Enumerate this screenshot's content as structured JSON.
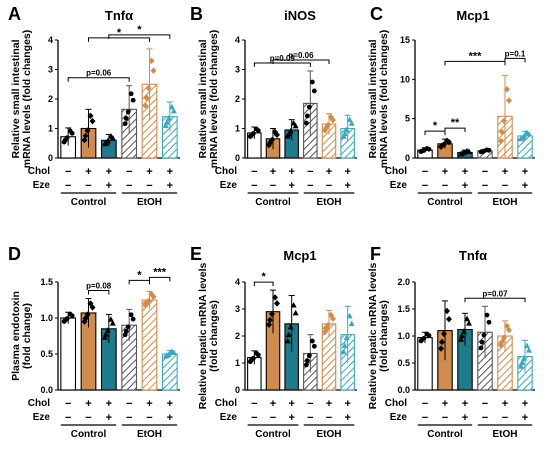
{
  "colors": {
    "control": "#ffffff",
    "chol": "#d18b4b",
    "chol_eze": "#1e7b8c",
    "etoh": "#555555",
    "etoh_chol": "#d18b4b",
    "etoh_chol_eze": "#3aa8bf"
  },
  "row_labels": {
    "chol": "Chol",
    "eze": "Eze"
  },
  "group_labels": [
    "Control",
    "EtOH"
  ],
  "chart_data": [
    {
      "panel": "A",
      "title": "Tnfα",
      "type": "bar",
      "ylabel": [
        "Relative small intestinal",
        "mRNA levels (fold changes)"
      ],
      "ylim": [
        0,
        4
      ],
      "yticks": [
        0,
        1,
        2,
        3,
        4
      ],
      "categories": [
        "Control",
        "Chol",
        "Chol+Eze",
        "EtOH",
        "EtOH+Chol",
        "EtOH+Chol+Eze"
      ],
      "values": [
        0.72,
        1.0,
        0.6,
        1.65,
        2.5,
        1.4
      ],
      "errors": [
        0.3,
        0.65,
        0.2,
        0.8,
        1.2,
        0.5
      ],
      "chol_row": [
        "−",
        "+",
        "+",
        "−",
        "+",
        "+"
      ],
      "eze_row": [
        "−",
        "−",
        "+",
        "−",
        "−",
        "+"
      ],
      "annotations": [
        {
          "from": 0,
          "to": 3,
          "text": "p=0.06"
        },
        {
          "from": 1,
          "to": 4,
          "text": "*"
        },
        {
          "from": 2,
          "to": 5,
          "text": "*"
        }
      ]
    },
    {
      "panel": "B",
      "title": "iNOS",
      "type": "bar",
      "ylabel": [
        "Relative small intestinal",
        "mRNA levels (fold changes)"
      ],
      "ylim": [
        0,
        4
      ],
      "yticks": [
        0,
        1,
        2,
        3,
        4
      ],
      "categories": [
        "Control",
        "Chol",
        "Chol+Eze",
        "EtOH",
        "EtOH+Chol",
        "EtOH+Chol+Eze"
      ],
      "values": [
        0.85,
        0.65,
        0.95,
        1.85,
        1.15,
        1.0
      ],
      "errors": [
        0.2,
        0.35,
        0.35,
        1.1,
        0.35,
        0.45
      ],
      "chol_row": [
        "−",
        "+",
        "+",
        "−",
        "+",
        "+"
      ],
      "eze_row": [
        "−",
        "−",
        "+",
        "−",
        "−",
        "+"
      ],
      "annotations": [
        {
          "from": 0,
          "to": 3,
          "text": "p=0.09"
        },
        {
          "from": 1,
          "to": 4,
          "text": "p=0.06"
        }
      ]
    },
    {
      "panel": "C",
      "title": "Mcp1",
      "type": "bar",
      "ylabel": [
        "Relative small intestinal",
        "mRNA levels (fold changes)"
      ],
      "ylim": [
        0,
        15
      ],
      "yticks": [
        0,
        5,
        10,
        15
      ],
      "categories": [
        "Control",
        "Chol",
        "Chol+Eze",
        "EtOH",
        "EtOH+Chol",
        "EtOH+Chol+Eze"
      ],
      "values": [
        1.0,
        1.8,
        0.7,
        0.9,
        5.3,
        2.8
      ],
      "errors": [
        0.3,
        0.6,
        0.3,
        0.2,
        5.2,
        0.6
      ],
      "chol_row": [
        "−",
        "+",
        "+",
        "−",
        "+",
        "+"
      ],
      "eze_row": [
        "−",
        "−",
        "+",
        "−",
        "−",
        "+"
      ],
      "annotations": [
        {
          "from": 0,
          "to": 1,
          "text": "*"
        },
        {
          "from": 1,
          "to": 2,
          "text": "**"
        },
        {
          "from": 1,
          "to": 4,
          "text": "***"
        },
        {
          "from": 4,
          "to": 5,
          "text": "p=0.1"
        }
      ]
    },
    {
      "panel": "D",
      "title": "",
      "type": "bar",
      "ylabel": [
        "Plasma endotoxin",
        "(fold change)"
      ],
      "ylim": [
        0,
        1.5
      ],
      "yticks": [
        0,
        0.5,
        1.0,
        1.5
      ],
      "categories": [
        "Control",
        "Chol",
        "Chol+Eze",
        "EtOH",
        "EtOH+Chol",
        "EtOH+Chol+Eze"
      ],
      "values": [
        1.0,
        1.07,
        0.85,
        0.9,
        1.25,
        0.5
      ],
      "errors": [
        0.08,
        0.2,
        0.2,
        0.22,
        0.12,
        0.05
      ],
      "chol_row": [
        "−",
        "+",
        "+",
        "−",
        "+",
        "+"
      ],
      "eze_row": [
        "−",
        "−",
        "+",
        "−",
        "−",
        "+"
      ],
      "annotations": [
        {
          "from": 1,
          "to": 2,
          "text": "p=0.08"
        },
        {
          "from": 3,
          "to": 4,
          "text": "*"
        },
        {
          "from": 4,
          "to": 5,
          "text": "***"
        }
      ]
    },
    {
      "panel": "E",
      "title": "Mcp1",
      "type": "bar",
      "ylabel": [
        "Relative hepatic mRNA levels",
        "(fold changes)"
      ],
      "ylim": [
        0,
        4
      ],
      "yticks": [
        0,
        1,
        2,
        3,
        4
      ],
      "categories": [
        "Control",
        "Chol",
        "Chol+Eze",
        "EtOH",
        "EtOH+Chol",
        "EtOH+Chol+Eze"
      ],
      "values": [
        1.2,
        2.9,
        2.45,
        1.35,
        2.45,
        2.05
      ],
      "errors": [
        0.25,
        0.8,
        1.05,
        0.7,
        0.5,
        1.05
      ],
      "chol_row": [
        "−",
        "+",
        "+",
        "−",
        "+",
        "+"
      ],
      "eze_row": [
        "−",
        "−",
        "+",
        "−",
        "−",
        "+"
      ],
      "annotations": [
        {
          "from": 0,
          "to": 1,
          "text": "*"
        }
      ]
    },
    {
      "panel": "F",
      "title": "Tnfα",
      "type": "bar",
      "ylabel": [
        "Relative hepatic mRNA levels",
        "(fold changes)"
      ],
      "ylim": [
        0,
        2.0
      ],
      "yticks": [
        0,
        0.5,
        1.0,
        1.5,
        2.0
      ],
      "categories": [
        "Control",
        "Chol",
        "Chol+Eze",
        "EtOH",
        "EtOH+Chol",
        "EtOH+Chol+Eze"
      ],
      "values": [
        0.97,
        1.1,
        1.12,
        1.07,
        1.0,
        0.62
      ],
      "errors": [
        0.1,
        0.55,
        0.3,
        0.48,
        0.28,
        0.3
      ],
      "chol_row": [
        "−",
        "+",
        "+",
        "−",
        "+",
        "+"
      ],
      "eze_row": [
        "−",
        "−",
        "+",
        "−",
        "−",
        "+"
      ],
      "annotations": [
        {
          "from": 2,
          "to": 5,
          "text": "p=0.07"
        }
      ]
    }
  ]
}
